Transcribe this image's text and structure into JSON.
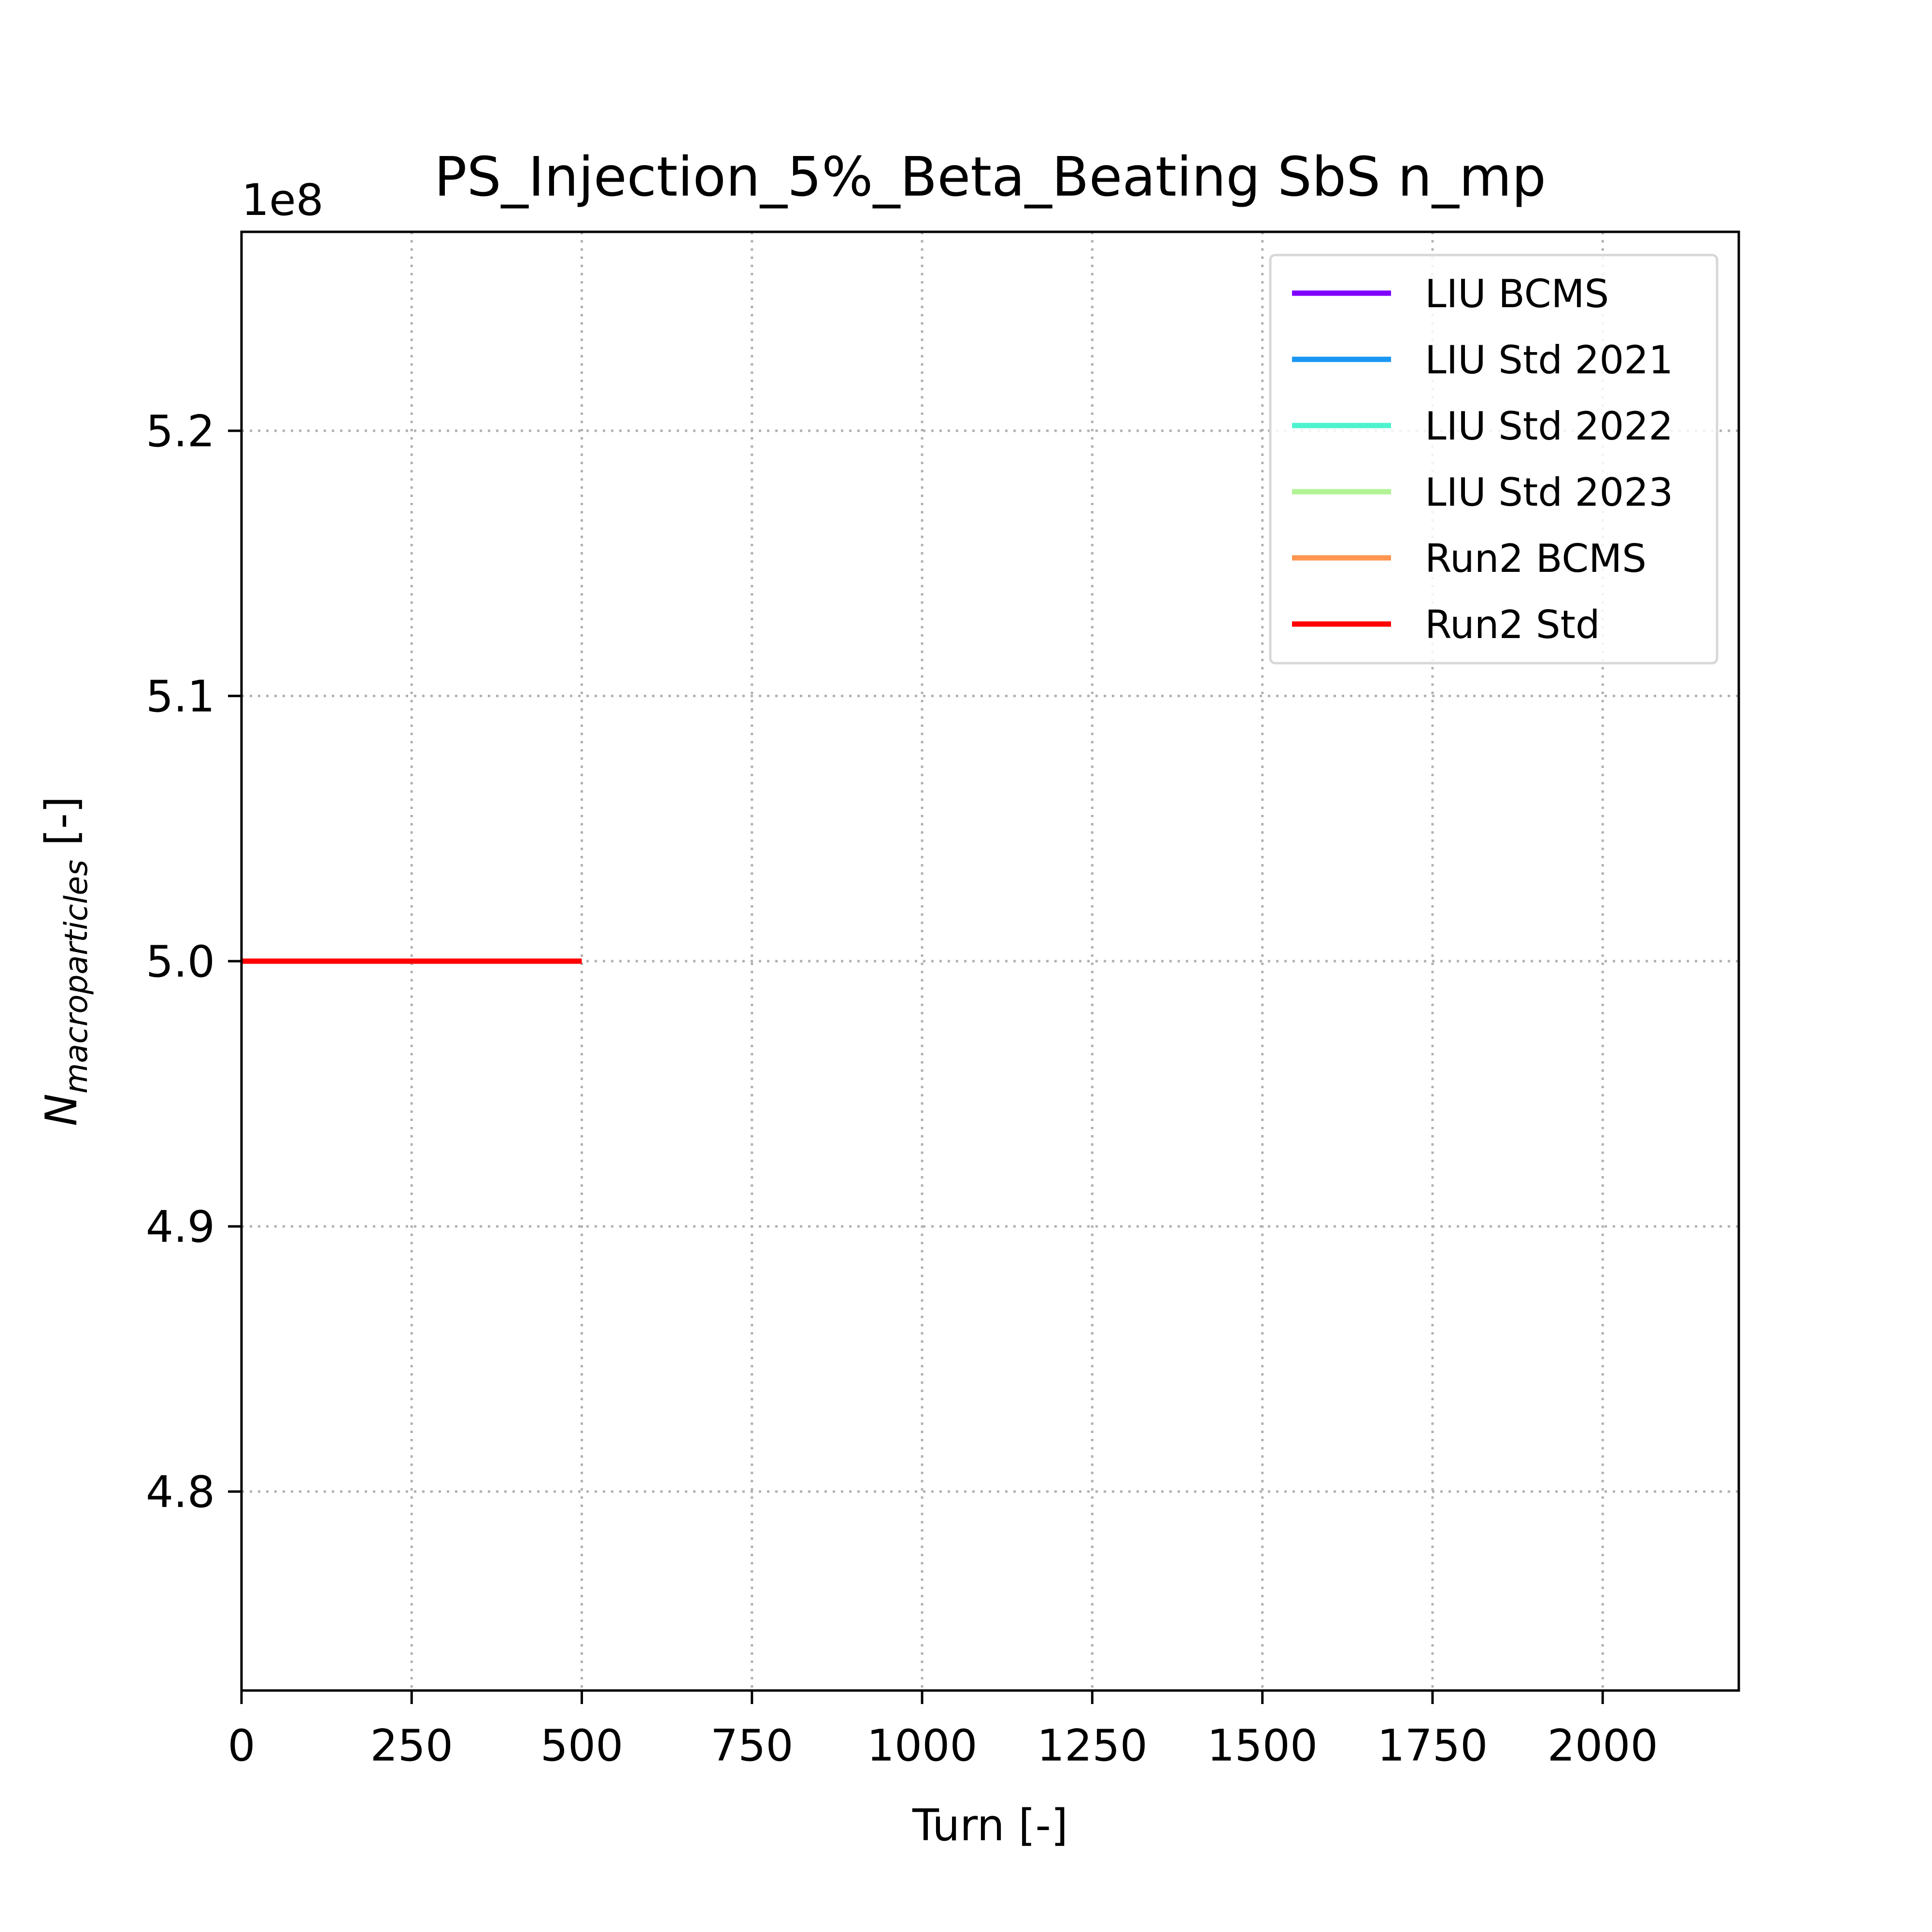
{
  "chart_data": {
    "type": "line",
    "title": "PS_Injection_5%_Beta_Beating SbS n_mp",
    "xlabel": "Turn [-]",
    "ylabel_main": "N",
    "ylabel_subscript": "macroparticles",
    "ylabel_suffix": " [-]",
    "y_multiplier": "1e8",
    "xlim": [
      0,
      2200
    ],
    "ylim": [
      4.725,
      5.275
    ],
    "x_ticks": [
      0,
      250,
      500,
      750,
      1000,
      1250,
      1500,
      1750,
      2000
    ],
    "y_ticks": [
      4.8,
      4.9,
      5.0,
      5.1,
      5.2
    ],
    "x_tick_labels": [
      "0",
      "250",
      "500",
      "750",
      "1000",
      "1250",
      "1500",
      "1750",
      "2000"
    ],
    "y_tick_labels": [
      "4.8",
      "4.9",
      "5.0",
      "5.1",
      "5.2"
    ],
    "grid": true,
    "legend_position": "top-right",
    "series": [
      {
        "name": "LIU BCMS",
        "color": "#8000ff",
        "x": [],
        "y": []
      },
      {
        "name": "LIU Std 2021",
        "color": "#1996f3",
        "x": [],
        "y": []
      },
      {
        "name": "LIU Std 2022",
        "color": "#4df3ce",
        "x": [],
        "y": []
      },
      {
        "name": "LIU Std 2023",
        "color": "#b2f396",
        "x": [],
        "y": []
      },
      {
        "name": "Run2 BCMS",
        "color": "#ff964f",
        "x": [],
        "y": []
      },
      {
        "name": "Run2 Std",
        "color": "#ff0000",
        "x": [
          0,
          500
        ],
        "y": [
          5.0,
          5.0
        ]
      }
    ]
  }
}
